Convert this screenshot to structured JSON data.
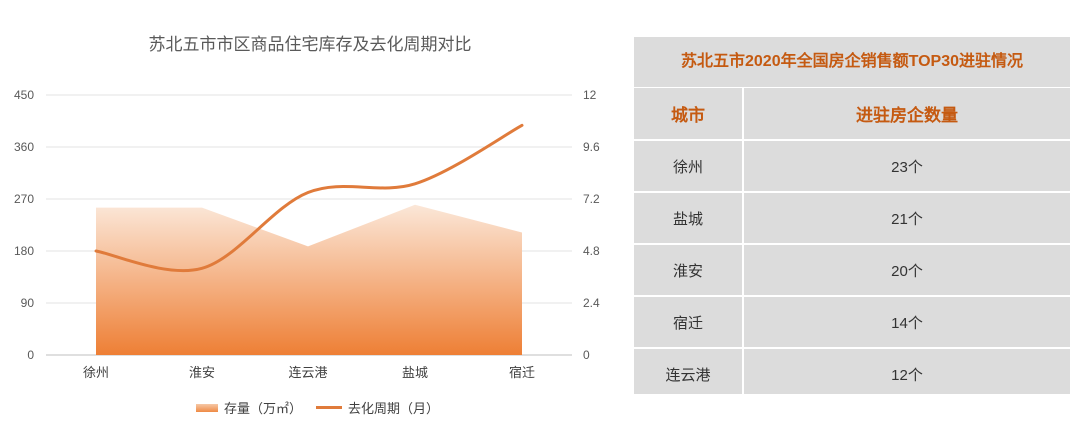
{
  "chart_data": {
    "type": "area",
    "title": "苏北五市市区商品住宅库存及去化周期对比",
    "categories": [
      "徐州",
      "淮安",
      "连云港",
      "盐城",
      "宿迁"
    ],
    "left_axis": {
      "min": 0,
      "max": 450,
      "ticks": [
        "0",
        "90",
        "180",
        "270",
        "360",
        "450"
      ]
    },
    "right_axis": {
      "min": 0,
      "max": 12,
      "ticks": [
        "0",
        "2.4",
        "4.8",
        "7.2",
        "9.6",
        "12"
      ]
    },
    "series": [
      {
        "name": "存量（万㎡）",
        "type": "area",
        "axis": "left",
        "values": [
          255,
          255,
          188,
          260,
          212
        ],
        "color": "#ef8a45"
      },
      {
        "name": "去化周期（月）",
        "type": "line",
        "axis": "right",
        "values": [
          4.8,
          4.0,
          7.5,
          7.9,
          10.6
        ],
        "color": "#e07b3b"
      }
    ],
    "grid": true,
    "legend_position": "bottom"
  },
  "table": {
    "title": "苏北五市2020年全国房企销售额TOP30进驻情况",
    "headers": [
      "城市",
      "进驻房企数量"
    ],
    "rows": [
      [
        "徐州",
        "23个"
      ],
      [
        "盐城",
        "21个"
      ],
      [
        "淮安",
        "20个"
      ],
      [
        "宿迁",
        "14个"
      ],
      [
        "连云港",
        "12个"
      ]
    ]
  }
}
